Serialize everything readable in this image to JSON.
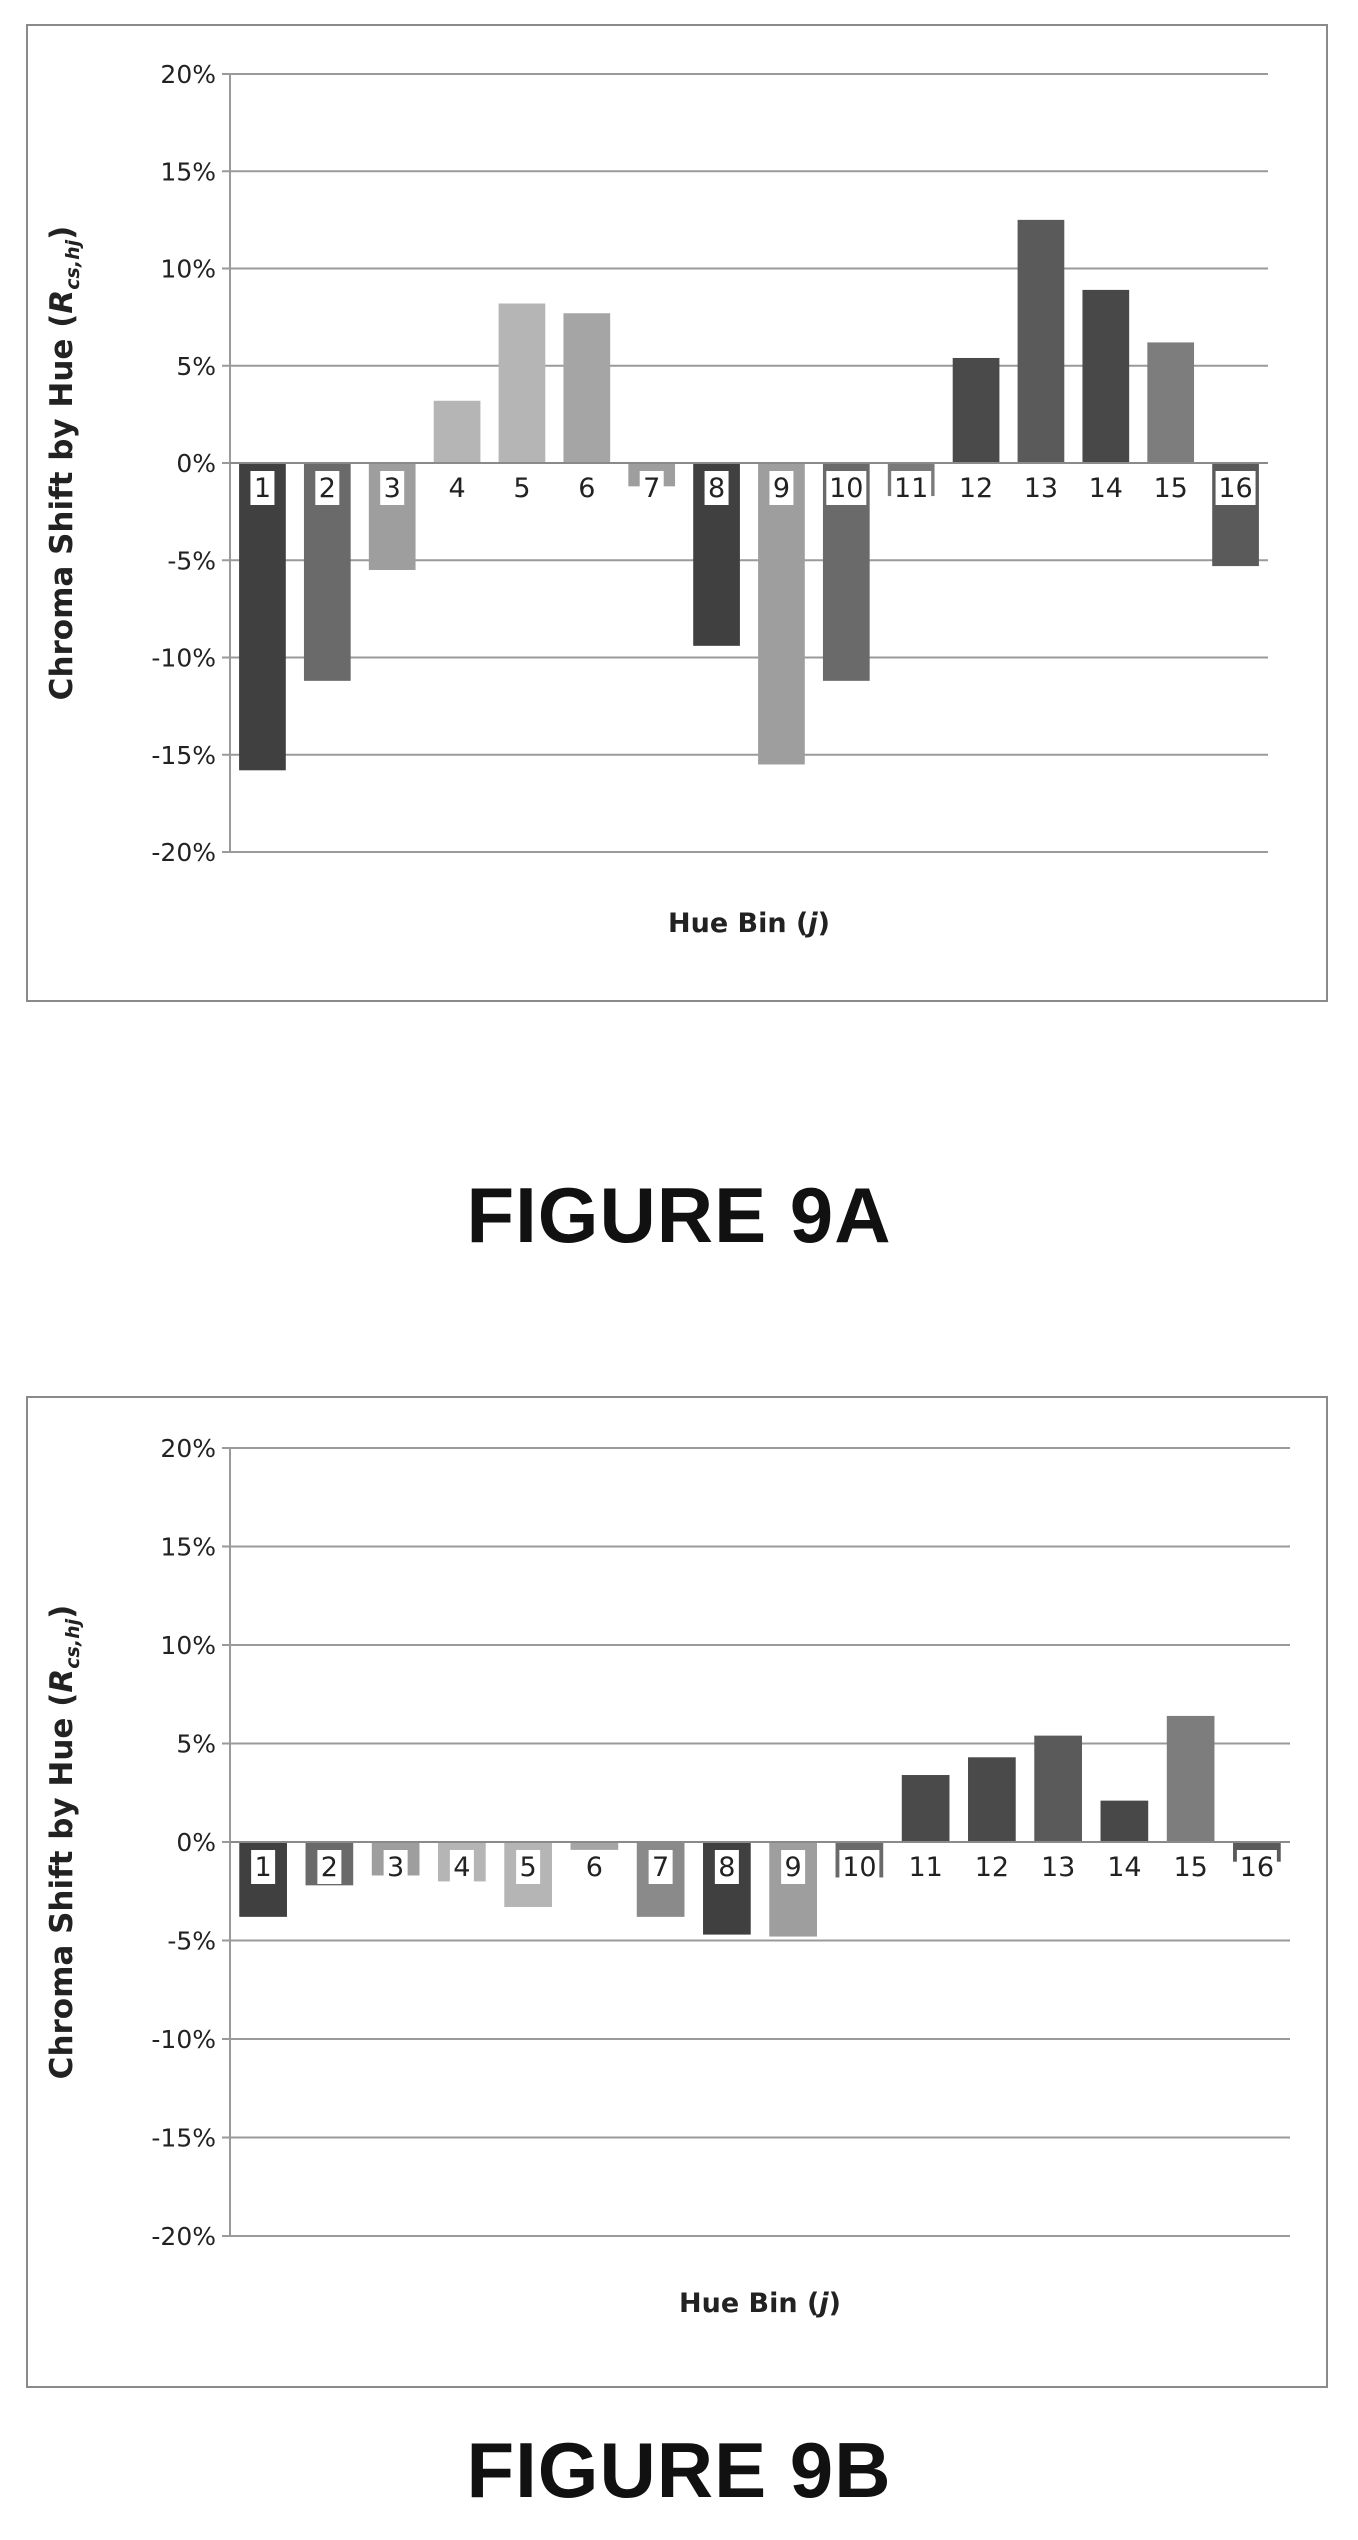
{
  "figures": [
    {
      "label": "FIGURE 9A",
      "chart_data": {
        "type": "bar",
        "categories": [
          "1",
          "2",
          "3",
          "4",
          "5",
          "6",
          "7",
          "8",
          "9",
          "10",
          "11",
          "12",
          "13",
          "14",
          "15",
          "16"
        ],
        "values": [
          -15.8,
          -11.2,
          -5.5,
          3.2,
          8.2,
          7.7,
          -1.2,
          -9.4,
          -15.5,
          -11.2,
          -1.7,
          5.4,
          12.5,
          8.9,
          6.2,
          -5.3
        ],
        "ylabel_main": "Chroma Shift by Hue (",
        "ylabel_var": "R",
        "ylabel_sub": "cs,hj",
        "ylabel_end": ")",
        "xlabel_main": "Hue Bin (",
        "xlabel_var": "j",
        "xlabel_end": ")",
        "yticks": [
          "20%",
          "15%",
          "10%",
          "5%",
          "0%",
          "-5%",
          "-10%",
          "-15%",
          "-20%"
        ],
        "ylim": [
          -20,
          20
        ],
        "grid": true,
        "colors": [
          "#404040",
          "#6a6a6a",
          "#9e9e9e",
          "#b5b5b5",
          "#b5b5b5",
          "#a5a5a5",
          "#9e9e9e",
          "#404040",
          "#9e9e9e",
          "#6a6a6a",
          "#7a7a7a",
          "#4a4a4a",
          "#5a5a5a",
          "#484848",
          "#7d7d7d",
          "#5a5a5a"
        ]
      }
    },
    {
      "label": "FIGURE 9B",
      "chart_data": {
        "type": "bar",
        "categories": [
          "1",
          "2",
          "3",
          "4",
          "5",
          "6",
          "7",
          "8",
          "9",
          "10",
          "11",
          "12",
          "13",
          "14",
          "15",
          "16"
        ],
        "values": [
          -3.8,
          -2.2,
          -1.7,
          -2.0,
          -3.3,
          -0.4,
          -3.8,
          -4.7,
          -4.8,
          -1.8,
          3.4,
          4.3,
          5.4,
          2.1,
          6.4,
          -1.0
        ],
        "ylabel_main": "Chroma Shift by Hue (",
        "ylabel_var": "R",
        "ylabel_sub": "cs,hj",
        "ylabel_end": ")",
        "xlabel_main": "Hue Bin (",
        "xlabel_var": "j",
        "xlabel_end": ")",
        "yticks": [
          "20%",
          "15%",
          "10%",
          "5%",
          "0%",
          "-5%",
          "-10%",
          "-15%",
          "-20%"
        ],
        "ylim": [
          -20,
          20
        ],
        "grid": true,
        "colors": [
          "#404040",
          "#6a6a6a",
          "#9e9e9e",
          "#b5b5b5",
          "#b5b5b5",
          "#a5a5a5",
          "#8a8a8a",
          "#404040",
          "#9e9e9e",
          "#6a6a6a",
          "#4a4a4a",
          "#4a4a4a",
          "#5a5a5a",
          "#484848",
          "#7d7d7d",
          "#5a5a5a"
        ]
      }
    }
  ]
}
